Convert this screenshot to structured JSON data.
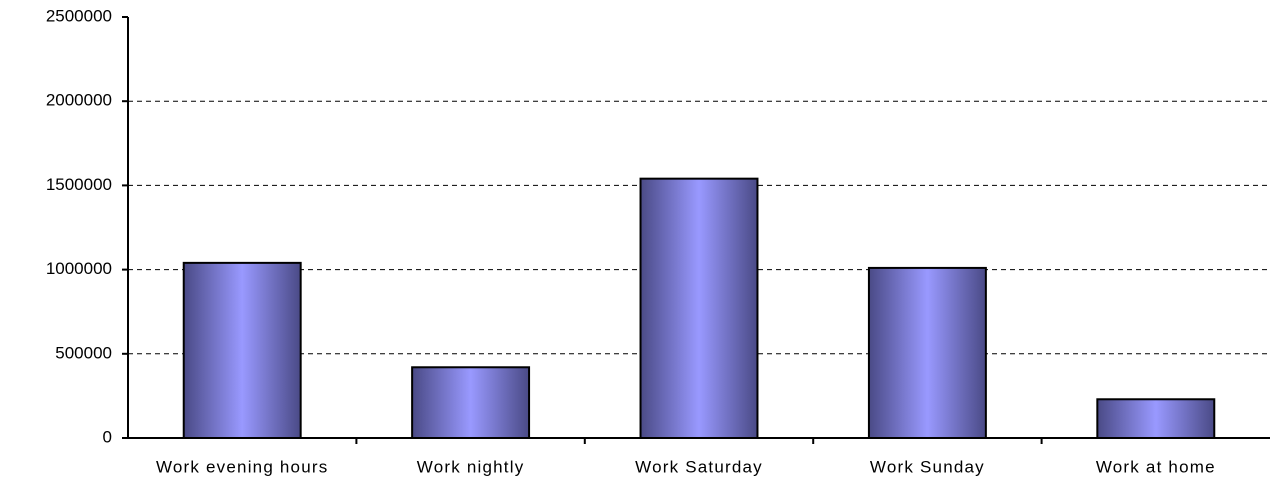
{
  "chart_data": {
    "type": "bar",
    "categories": [
      "Work evening hours",
      "Work nightly",
      "Work Saturday",
      "Work Sunday",
      "Work at home"
    ],
    "values": [
      1040000,
      420000,
      1540000,
      1010000,
      230000
    ],
    "color": "#9999ff",
    "edge_color": "#4a4a86",
    "ylim": [
      0,
      2500000
    ],
    "yticks": [
      0,
      500000,
      1000000,
      1500000,
      2000000,
      2500000
    ],
    "grid": true
  }
}
